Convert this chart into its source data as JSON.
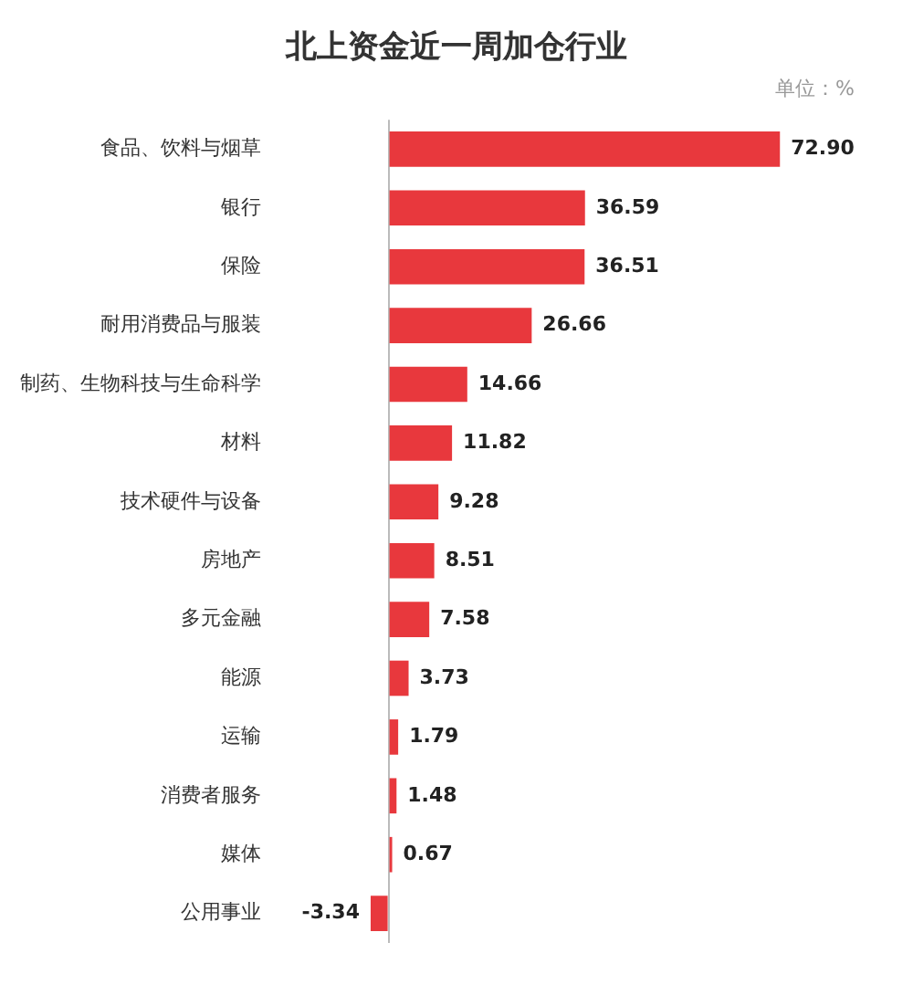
{
  "chart_data": {
    "type": "bar",
    "orientation": "horizontal",
    "title": "北上资金近一周加仓行业",
    "annotations": [
      "单位：%"
    ],
    "categories": [
      "食品、饮料与烟草",
      "银行",
      "保险",
      "耐用消费品与服装",
      "制药、生物科技与生命科学",
      "材料",
      "技术硬件与设备",
      "房地产",
      "多元金融",
      "能源",
      "运输",
      "消费者服务",
      "媒体",
      "公用事业"
    ],
    "values": [
      72.9,
      36.59,
      36.51,
      26.66,
      14.66,
      11.82,
      9.28,
      8.51,
      7.58,
      3.73,
      1.79,
      1.48,
      0.67,
      -3.34
    ],
    "value_labels": [
      "72.90",
      "36.59",
      "36.51",
      "26.66",
      "14.66",
      "11.82",
      "9.28",
      "8.51",
      "7.58",
      "3.73",
      "1.79",
      "1.48",
      "0.67",
      "-3.34"
    ],
    "color": "#e8383d",
    "grid": false,
    "legend": false,
    "tick_labels": "y"
  }
}
